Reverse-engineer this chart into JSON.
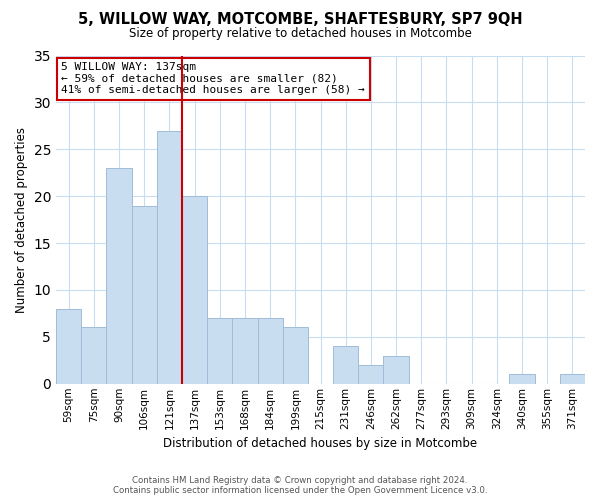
{
  "title": "5, WILLOW WAY, MOTCOMBE, SHAFTESBURY, SP7 9QH",
  "subtitle": "Size of property relative to detached houses in Motcombe",
  "xlabel": "Distribution of detached houses by size in Motcombe",
  "ylabel": "Number of detached properties",
  "bar_labels": [
    "59sqm",
    "75sqm",
    "90sqm",
    "106sqm",
    "121sqm",
    "137sqm",
    "153sqm",
    "168sqm",
    "184sqm",
    "199sqm",
    "215sqm",
    "231sqm",
    "246sqm",
    "262sqm",
    "277sqm",
    "293sqm",
    "309sqm",
    "324sqm",
    "340sqm",
    "355sqm",
    "371sqm"
  ],
  "bar_values": [
    8,
    6,
    23,
    19,
    27,
    20,
    7,
    7,
    7,
    6,
    0,
    4,
    2,
    3,
    0,
    0,
    0,
    0,
    1,
    0,
    1
  ],
  "bar_color": "#c8ddf0",
  "bar_edge_color": "#a0bcd8",
  "vline_index": 5,
  "vline_color": "#cc0000",
  "ylim": [
    0,
    35
  ],
  "yticks": [
    0,
    5,
    10,
    15,
    20,
    25,
    30,
    35
  ],
  "annotation_title": "5 WILLOW WAY: 137sqm",
  "annotation_line1": "← 59% of detached houses are smaller (82)",
  "annotation_line2": "41% of semi-detached houses are larger (58) →",
  "annotation_box_color": "#ffffff",
  "annotation_box_edgecolor": "#cc0000",
  "footer1": "Contains HM Land Registry data © Crown copyright and database right 2024.",
  "footer2": "Contains public sector information licensed under the Open Government Licence v3.0.",
  "background_color": "#ffffff",
  "grid_color": "#c8ddf0"
}
